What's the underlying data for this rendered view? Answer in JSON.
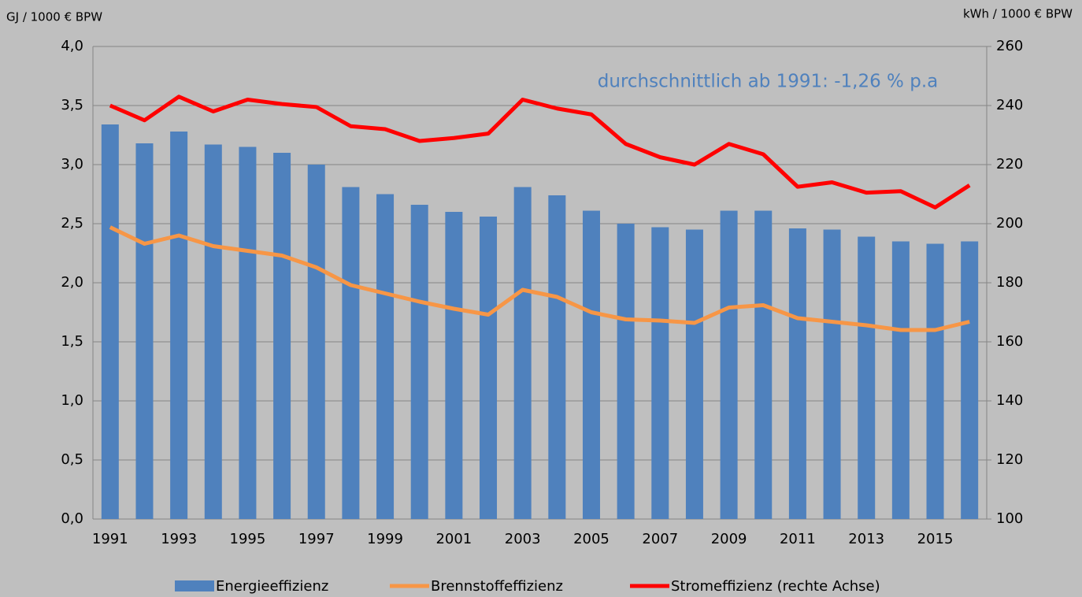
{
  "chart_data": {
    "type": "bar-line",
    "y_label": "GJ / 1000 € BPW",
    "y2_label": "kWh / 1000 € BPW",
    "annotation": "durchschnittlich ab 1991:  -1,26 % p.a",
    "categories": [
      "1991",
      null,
      "1993",
      null,
      "1995",
      null,
      "1997",
      null,
      "1999",
      null,
      "2001",
      null,
      "2003",
      null,
      "2005",
      null,
      "2007",
      null,
      "2009",
      null,
      "2011",
      null,
      "2013",
      null,
      "2015",
      null
    ],
    "series": [
      {
        "name": "Energieeffizienz",
        "kind": "bar",
        "color": "#4f81bd",
        "values": [
          3.34,
          3.18,
          3.28,
          3.17,
          3.15,
          3.1,
          3.0,
          2.81,
          2.75,
          2.66,
          2.6,
          2.56,
          2.81,
          2.74,
          2.61,
          2.5,
          2.47,
          2.45,
          2.61,
          2.61,
          2.46,
          2.45,
          2.39,
          2.35,
          2.33,
          2.35
        ]
      },
      {
        "name": "Brennstoffeffizienz",
        "kind": "line",
        "color": "#f79646",
        "values": [
          2.47,
          2.33,
          2.4,
          2.31,
          2.27,
          2.23,
          2.13,
          1.98,
          1.91,
          1.84,
          1.78,
          1.73,
          1.94,
          1.88,
          1.75,
          1.69,
          1.68,
          1.66,
          1.79,
          1.81,
          1.7,
          1.67,
          1.64,
          1.6,
          1.6,
          1.67
        ]
      },
      {
        "name": "Stromeffizienz (rechte Achse)",
        "kind": "line",
        "axis": "y2",
        "color": "#ff0000",
        "values": [
          240,
          235,
          243,
          238,
          242,
          240.5,
          239.5,
          233,
          232,
          228,
          229,
          230.5,
          242,
          239,
          237,
          227,
          222.5,
          220,
          227,
          223.5,
          212.5,
          214,
          210.5,
          211,
          205.5,
          213
        ]
      }
    ],
    "ylim": [
      0,
      4
    ],
    "yticks": [
      {
        "value": 0,
        "label": "0,0"
      },
      {
        "value": 0.5,
        "label": "0,5"
      },
      {
        "value": 1,
        "label": "1,0"
      },
      {
        "value": 1.5,
        "label": "1,5"
      },
      {
        "value": 2,
        "label": "2,0"
      },
      {
        "value": 2.5,
        "label": "2,5"
      },
      {
        "value": 3,
        "label": "3,0"
      },
      {
        "value": 3.5,
        "label": "3,5"
      },
      {
        "value": 4,
        "label": "4,0"
      }
    ],
    "y2lim": [
      100,
      260
    ],
    "y2ticks": [
      100,
      120,
      140,
      160,
      180,
      200,
      220,
      240,
      260
    ],
    "grid": true
  }
}
